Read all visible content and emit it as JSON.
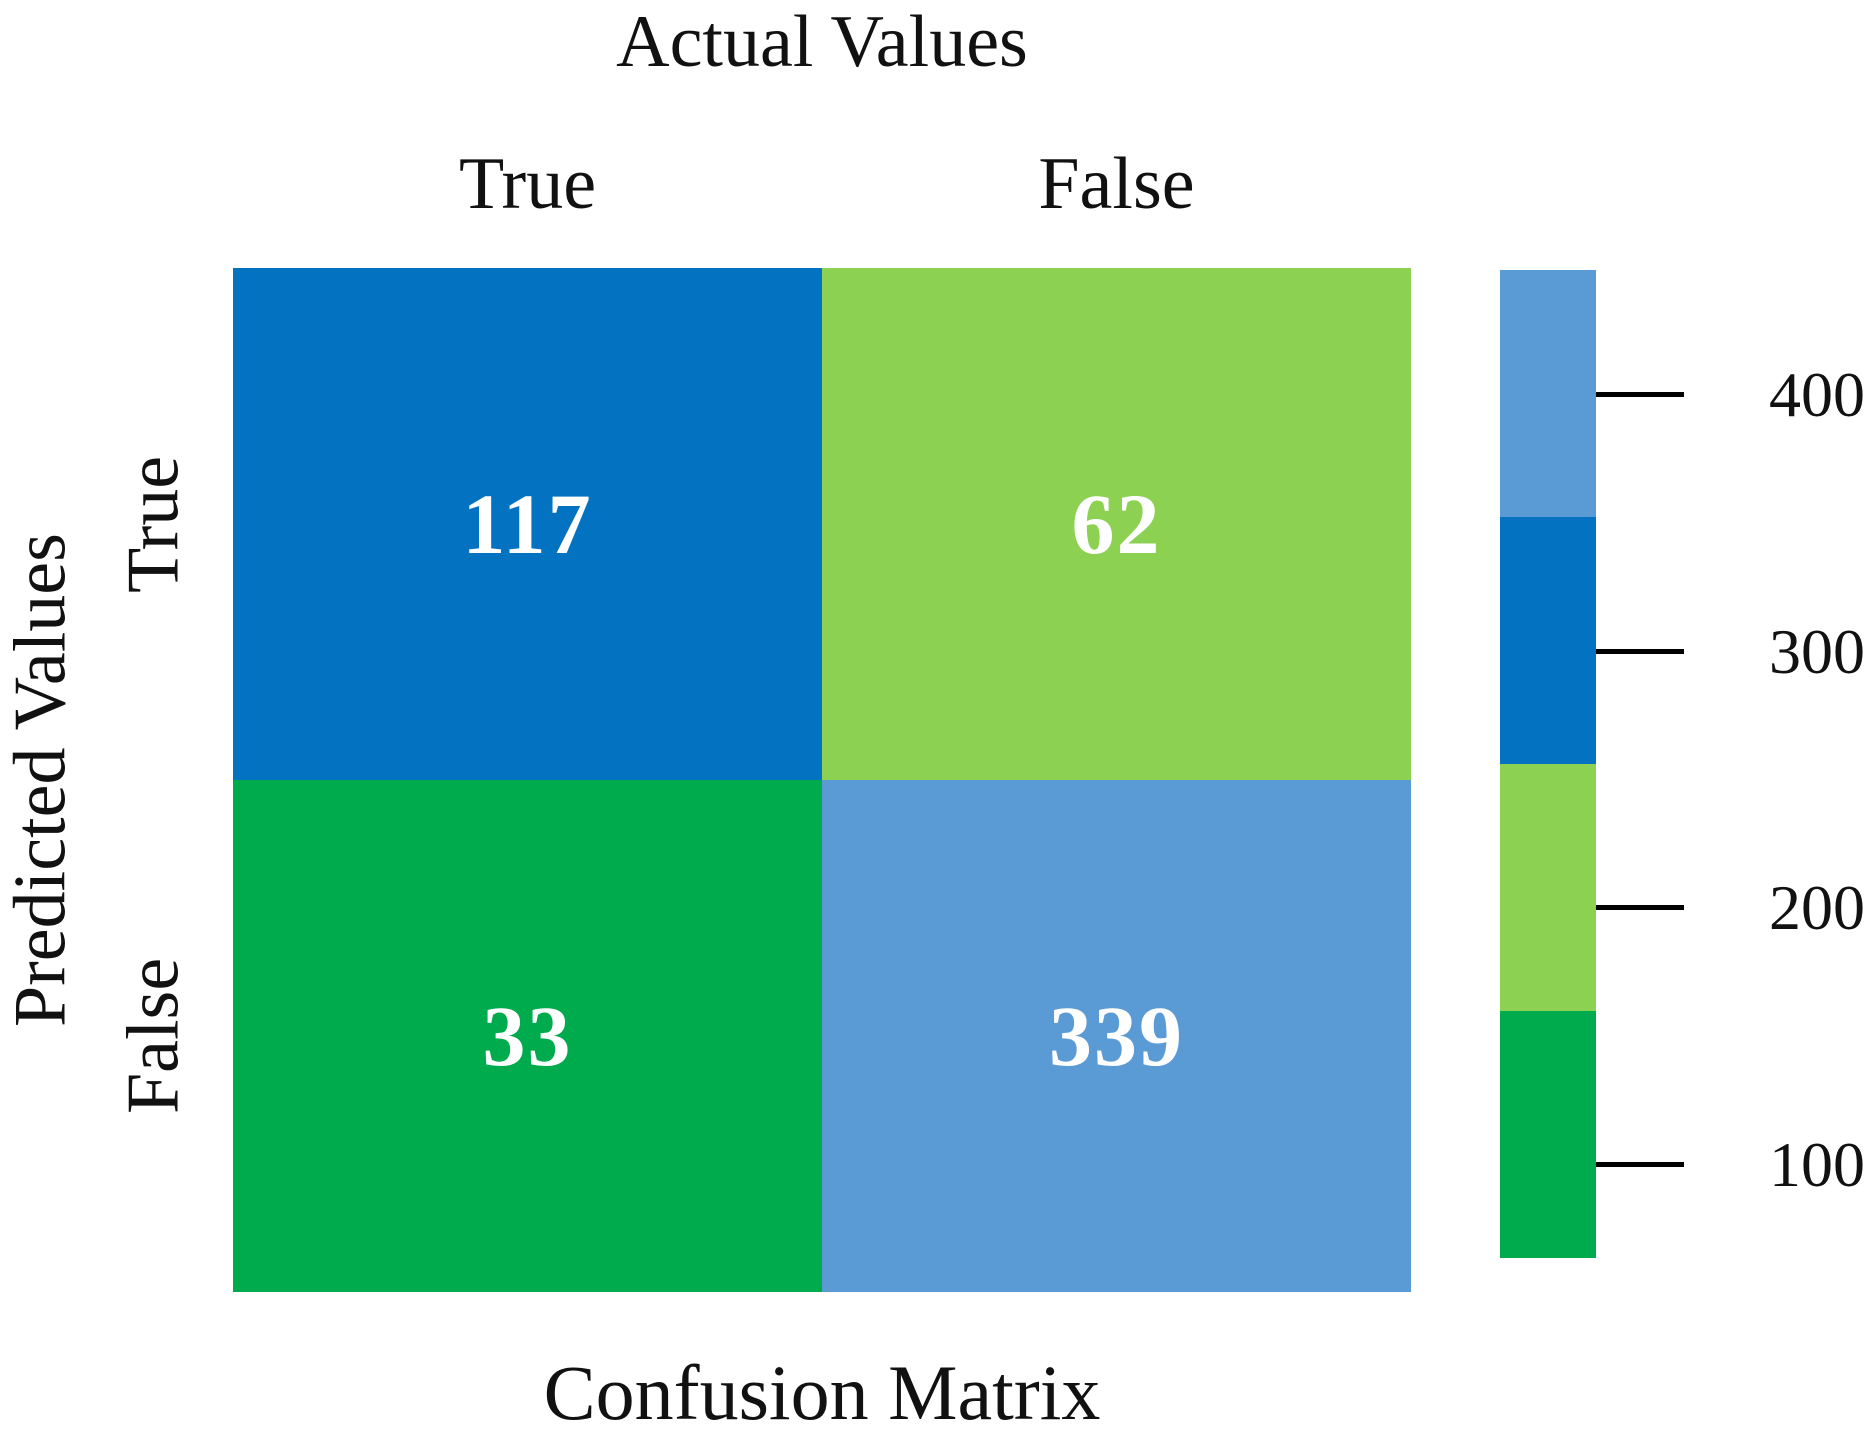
{
  "chart_data": {
    "type": "heatmap",
    "title": "Confusion Matrix",
    "x_axis_title": "Actual Values",
    "y_axis_title": "Predicted Values",
    "x_labels": [
      "True",
      "False"
    ],
    "y_labels": [
      "True",
      "False"
    ],
    "cells": [
      {
        "row": "True",
        "col": "True",
        "value": 117,
        "color": "#0272c1"
      },
      {
        "row": "True",
        "col": "False",
        "value": 62,
        "color": "#8dd152"
      },
      {
        "row": "False",
        "col": "True",
        "value": 33,
        "color": "#00ab4e"
      },
      {
        "row": "False",
        "col": "False",
        "value": 339,
        "color": "#5b9bd5"
      }
    ],
    "value_text_color": "#ffffff",
    "colorbar": {
      "orientation": "vertical",
      "position": "right",
      "ticks": [
        "400",
        "300",
        "200",
        "100"
      ],
      "segments_top_to_bottom": [
        {
          "name": "light-blue",
          "color": "#5b9bd5"
        },
        {
          "name": "dark-blue",
          "color": "#0272c1"
        },
        {
          "name": "light-green",
          "color": "#8dd152"
        },
        {
          "name": "green",
          "color": "#00ab4e"
        }
      ]
    },
    "grid": false,
    "legend": false
  }
}
